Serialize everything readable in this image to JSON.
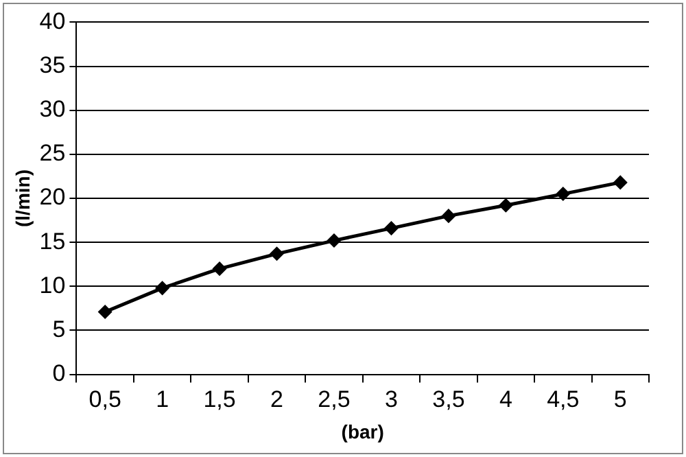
{
  "chart_data": {
    "type": "line",
    "xlabel": "(bar)",
    "ylabel": "(l/min)",
    "categories": [
      "0,5",
      "1",
      "1,5",
      "2",
      "2,5",
      "3",
      "3,5",
      "4",
      "4,5",
      "5"
    ],
    "series": [
      {
        "color": "#000000",
        "values": [
          7.1,
          9.8,
          12.0,
          13.7,
          15.2,
          16.6,
          18.0,
          19.2,
          20.5,
          21.8
        ]
      }
    ],
    "ylim": [
      0,
      40
    ],
    "yticks": [
      0,
      5,
      10,
      15,
      20,
      25,
      30,
      35,
      40
    ],
    "grid": "y",
    "marker": "diamond",
    "line_style": "solid",
    "legend": false
  }
}
